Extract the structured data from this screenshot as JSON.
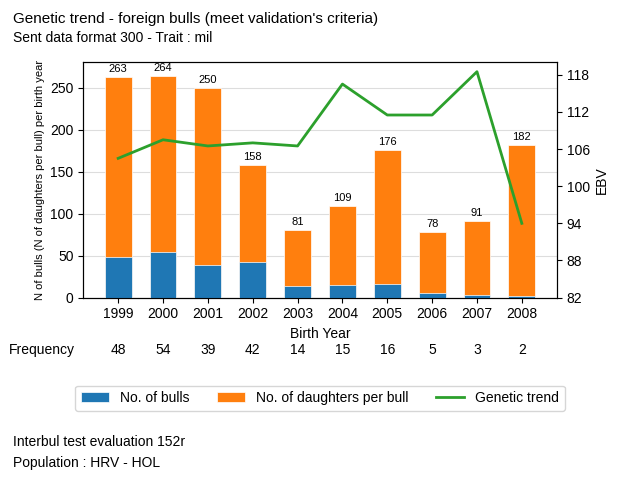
{
  "chart_data": {
    "type": "bar",
    "title": "Genetic trend - foreign bulls (meet validation's criteria)",
    "subtitle": "Sent data format 300 - Trait : mil",
    "xlabel": "Birth Year",
    "ylabel": "N of bulls (N of daughters per bull) per birth year",
    "y2label": "EBV",
    "categories": [
      "1999",
      "2000",
      "2001",
      "2002",
      "2003",
      "2004",
      "2005",
      "2006",
      "2007",
      "2008"
    ],
    "series": [
      {
        "name": "No. of bulls",
        "values": [
          48,
          54,
          39,
          42,
          14,
          15,
          16,
          5,
          3,
          2
        ]
      },
      {
        "name": "No. of daughters per bull",
        "values": [
          263,
          264,
          250,
          158,
          81,
          109,
          176,
          78,
          91,
          182
        ],
        "data_labels": true
      },
      {
        "name": "Genetic trend",
        "type": "line",
        "axis": "y2",
        "values": [
          104.5,
          107.5,
          106.5,
          107.0,
          106.5,
          116.5,
          111.5,
          111.5,
          118.5,
          94.0
        ]
      }
    ],
    "ylim": [
      0,
      280
    ],
    "yticks": [
      0,
      50,
      100,
      150,
      200,
      250
    ],
    "y2lim": [
      82,
      120
    ],
    "y2ticks": [
      82,
      88,
      94,
      100,
      106,
      112,
      118
    ],
    "grid": "y",
    "legend": "lower center",
    "frequency": {
      "label": "Frequency",
      "values": [
        48,
        54,
        39,
        42,
        14,
        15,
        16,
        5,
        3,
        2
      ]
    },
    "annotations": [
      "Interbul test evaluation 152r",
      "Population : HRV - HOL"
    ]
  }
}
